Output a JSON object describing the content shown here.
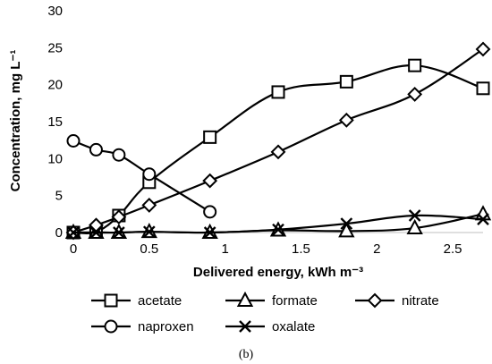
{
  "chart_data": {
    "type": "line",
    "xlabel": "Delivered energy, kWh m⁻³",
    "ylabel": "Concentration, mg L⁻¹",
    "xlim": [
      0,
      2.7
    ],
    "ylim": [
      0,
      30
    ],
    "xticks": [
      "0",
      "0.5",
      "1",
      "1.5",
      "2",
      "2.5"
    ],
    "yticks": [
      "0",
      "5",
      "10",
      "15",
      "20",
      "25",
      "30"
    ],
    "grid": false,
    "legend_position": "bottom",
    "caption": "(b)",
    "series": [
      {
        "name": "acetate",
        "marker": "square",
        "x": [
          0,
          0.15,
          0.3,
          0.5,
          0.9,
          1.35,
          1.8,
          2.25,
          2.7
        ],
        "y": [
          0,
          0.1,
          2.3,
          6.8,
          12.9,
          19.0,
          20.4,
          22.6,
          19.5
        ]
      },
      {
        "name": "formate",
        "marker": "triangle",
        "x": [
          0,
          0.15,
          0.3,
          0.5,
          0.9,
          1.35,
          1.8,
          2.25,
          2.7
        ],
        "y": [
          0,
          0,
          0,
          0.1,
          0,
          0.3,
          0.2,
          0.6,
          2.5
        ]
      },
      {
        "name": "nitrate",
        "marker": "diamond",
        "x": [
          0,
          0.15,
          0.3,
          0.5,
          0.9,
          1.35,
          1.8,
          2.25,
          2.7
        ],
        "y": [
          0,
          1.0,
          2.1,
          3.7,
          7.0,
          10.9,
          15.2,
          18.7,
          24.8
        ]
      },
      {
        "name": "naproxen",
        "marker": "circle",
        "x": [
          0,
          0.15,
          0.3,
          0.5,
          0.9
        ],
        "y": [
          12.4,
          11.2,
          10.5,
          7.9,
          2.8
        ]
      },
      {
        "name": "oxalate",
        "marker": "cross",
        "x": [
          0,
          0.15,
          0.3,
          0.5,
          0.9,
          1.35,
          1.8,
          2.25,
          2.7
        ],
        "y": [
          0,
          0,
          0,
          0.1,
          0,
          0.4,
          1.2,
          2.3,
          1.8
        ]
      }
    ]
  }
}
